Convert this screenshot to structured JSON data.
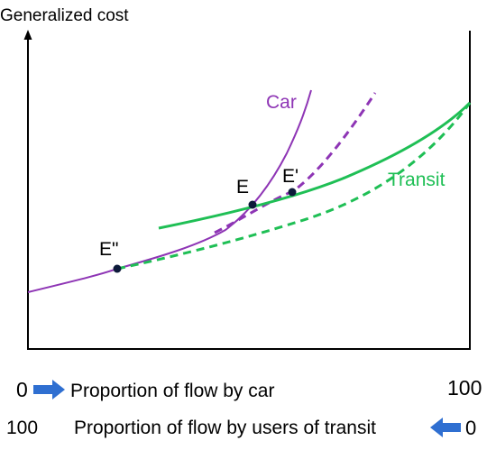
{
  "diagram": {
    "y_axis_label": "Generalized cost",
    "car_label": "Car",
    "transit_label": "Transit",
    "points": {
      "E": "E",
      "E_prime": "E'",
      "E_double_prime": "E\""
    },
    "bottom": {
      "row1": {
        "left": "0",
        "text": "Proportion of flow by car",
        "right": "100"
      },
      "row2": {
        "left": "100",
        "text": "Proportion of flow by users of transit",
        "right": "0"
      }
    },
    "colors": {
      "car": "#8e35b5",
      "transit": "#1fbf55",
      "arrow": "#2f6fd1",
      "axis": "#000000",
      "point": "#0d1a3a"
    }
  }
}
